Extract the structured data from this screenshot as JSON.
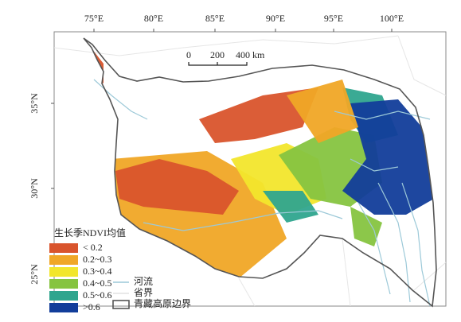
{
  "map": {
    "x_ticks": [
      "75°E",
      "80°E",
      "85°E",
      "90°E",
      "95°E",
      "100°E"
    ],
    "y_ticks": [
      "35°N",
      "30°N",
      "25°N"
    ],
    "scale_bar": {
      "labels": [
        "0",
        "200",
        "400 km"
      ]
    },
    "legend": {
      "title": "生长季NDVI均值",
      "classes": [
        {
          "label": "< 0.2",
          "color": "#d9542c"
        },
        {
          "label": "0.2~0.3",
          "color": "#f0a726"
        },
        {
          "label": "0.3~0.4",
          "color": "#f2e62c"
        },
        {
          "label": "0.4~0.5",
          "color": "#86c440"
        },
        {
          "label": "0.5~0.6",
          "color": "#2fa58e"
        },
        {
          "label": ">0.6",
          "color": "#123d9a"
        }
      ],
      "lines": [
        {
          "label": "河流",
          "color": "#9cc9d8"
        },
        {
          "label": "省界",
          "color": "#e2e2e2"
        },
        {
          "label": "青藏高原边界",
          "color": "#555555"
        }
      ]
    }
  }
}
